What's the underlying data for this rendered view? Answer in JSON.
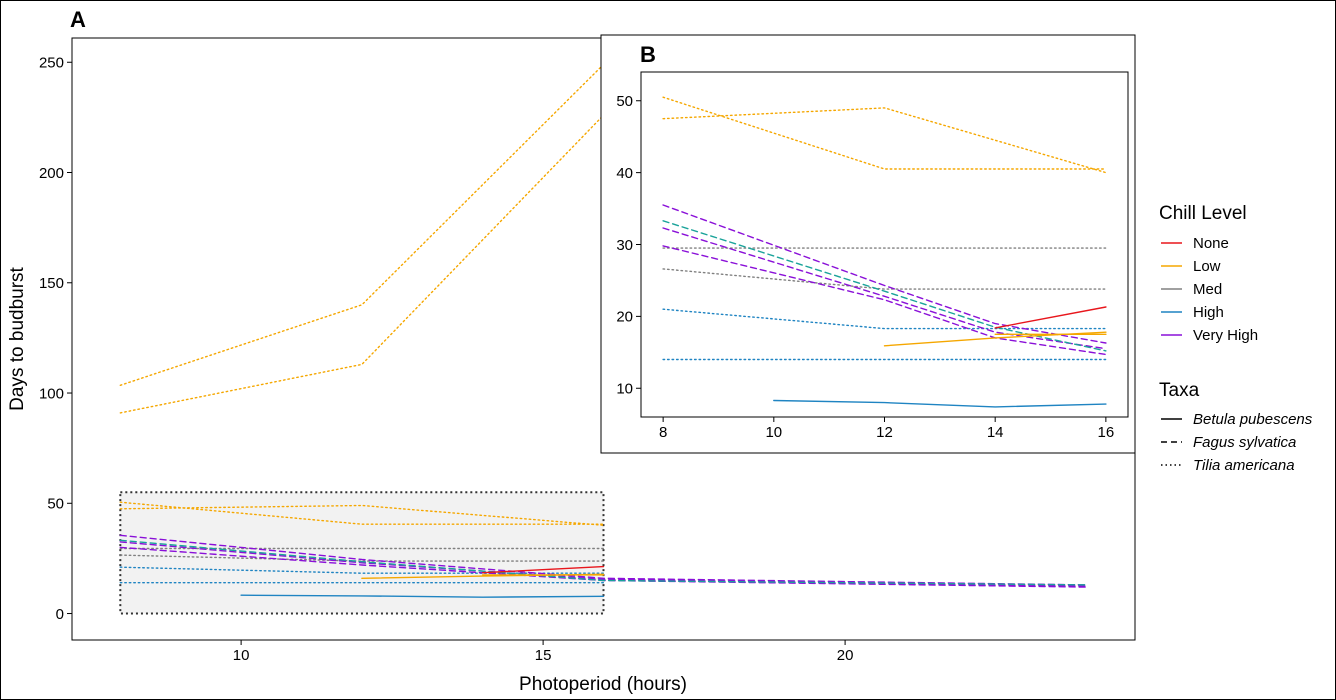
{
  "colors": {
    "None": "#e8161c",
    "Low": "#f5a700",
    "Med": "#808080",
    "High": "#1f84c2",
    "Very High": "#8a10d8",
    "Fagus Med": "#1aa39a",
    "inset_fill": "#f2f2f2",
    "axis": "#000000"
  },
  "chart_data": [
    {
      "id": "A",
      "panel_label": "A",
      "type": "line",
      "xlabel": "Photoperiod (hours)",
      "ylabel": "Days to budburst",
      "xlim": [
        7.2,
        24.8
      ],
      "ylim": [
        -12,
        261
      ],
      "xticks": [
        10,
        15,
        20
      ],
      "yticks": [
        0,
        50,
        100,
        150,
        200,
        250
      ],
      "zoom_region": {
        "x": [
          8,
          16
        ],
        "y": [
          0,
          55
        ]
      },
      "series": [
        {
          "taxa": "Tilia americana",
          "chill": "Low",
          "x": [
            8,
            12,
            16
          ],
          "y": [
            91,
            113,
            226
          ]
        },
        {
          "taxa": "Tilia americana",
          "chill": "Low",
          "x": [
            8,
            12,
            16
          ],
          "y": [
            103.5,
            140,
            249
          ]
        },
        {
          "taxa": "Tilia americana",
          "chill": "Low",
          "x": [
            8,
            12,
            16
          ],
          "y": [
            50.5,
            40.5,
            40.5
          ]
        },
        {
          "taxa": "Tilia americana",
          "chill": "Low",
          "x": [
            8,
            12,
            16
          ],
          "y": [
            47.5,
            49,
            40
          ]
        },
        {
          "taxa": "Tilia americana",
          "chill": "Med",
          "x": [
            8,
            16
          ],
          "y": [
            29.5,
            29.5
          ]
        },
        {
          "taxa": "Tilia americana",
          "chill": "Med",
          "x": [
            8,
            12,
            16
          ],
          "y": [
            26.5,
            23.8,
            23.8
          ]
        },
        {
          "taxa": "Tilia americana",
          "chill": "High",
          "x": [
            8,
            12,
            16
          ],
          "y": [
            21,
            18.3,
            18.3
          ]
        },
        {
          "taxa": "Tilia americana",
          "chill": "High",
          "x": [
            8,
            16
          ],
          "y": [
            14,
            14
          ]
        },
        {
          "taxa": "Fagus sylvatica",
          "chill": "Very High",
          "x": [
            8,
            12,
            16,
            24
          ],
          "y": [
            35.5,
            24.5,
            16,
            13
          ]
        },
        {
          "taxa": "Fagus sylvatica",
          "chill": "Very High",
          "x": [
            8,
            12,
            16,
            24
          ],
          "y": [
            32.5,
            23,
            15.5,
            12.5
          ]
        },
        {
          "taxa": "Fagus sylvatica",
          "chill": "Very High",
          "x": [
            8,
            12,
            16,
            24
          ],
          "y": [
            30,
            22,
            15,
            12
          ]
        },
        {
          "taxa": "Fagus sylvatica",
          "chill": "Med",
          "x": [
            8,
            12,
            16,
            24
          ],
          "y": [
            33.2,
            23.5,
            15,
            13
          ]
        },
        {
          "taxa": "Betula pubescens",
          "chill": "None",
          "x": [
            14,
            16
          ],
          "y": [
            18.5,
            21.3
          ]
        },
        {
          "taxa": "Betula pubescens",
          "chill": "Low",
          "x": [
            12,
            14,
            16
          ],
          "y": [
            16,
            17,
            17.8
          ]
        },
        {
          "taxa": "Betula pubescens",
          "chill": "Low",
          "x": [
            14,
            16
          ],
          "y": [
            17.5,
            17.5
          ]
        },
        {
          "taxa": "Betula pubescens",
          "chill": "High",
          "x": [
            10,
            12,
            14,
            16
          ],
          "y": [
            8.3,
            8,
            7.4,
            7.8
          ]
        }
      ]
    },
    {
      "id": "B",
      "panel_label": "B",
      "type": "line",
      "xlim": [
        7.6,
        16.4
      ],
      "ylim": [
        6,
        54
      ],
      "xticks": [
        8,
        10,
        12,
        14,
        16
      ],
      "yticks": [
        10,
        20,
        30,
        40,
        50
      ],
      "series": [
        {
          "taxa": "Tilia americana",
          "chill": "Low",
          "x": [
            8,
            12,
            16
          ],
          "y": [
            50.5,
            40.5,
            40.5
          ]
        },
        {
          "taxa": "Tilia americana",
          "chill": "Low",
          "x": [
            8,
            12,
            16
          ],
          "y": [
            47.5,
            49,
            40
          ]
        },
        {
          "taxa": "Tilia americana",
          "chill": "Med",
          "x": [
            8,
            16
          ],
          "y": [
            29.5,
            29.5
          ]
        },
        {
          "taxa": "Tilia americana",
          "chill": "Med",
          "x": [
            8,
            12,
            16
          ],
          "y": [
            26.6,
            23.8,
            23.8
          ]
        },
        {
          "taxa": "Tilia americana",
          "chill": "High",
          "x": [
            8,
            12,
            16
          ],
          "y": [
            21,
            18.3,
            18.3
          ]
        },
        {
          "taxa": "Tilia americana",
          "chill": "High",
          "x": [
            8,
            16
          ],
          "y": [
            14,
            14
          ]
        },
        {
          "taxa": "Fagus sylvatica",
          "chill": "Very High",
          "x": [
            8,
            12,
            14,
            16
          ],
          "y": [
            35.5,
            24.3,
            19,
            16.3
          ]
        },
        {
          "taxa": "Fagus sylvatica",
          "chill": "Very High",
          "x": [
            8,
            12,
            14,
            16
          ],
          "y": [
            32.3,
            22.8,
            17.8,
            15.5
          ]
        },
        {
          "taxa": "Fagus sylvatica",
          "chill": "Very High",
          "x": [
            8,
            12,
            14,
            16
          ],
          "y": [
            29.8,
            22.3,
            17,
            14.7
          ]
        },
        {
          "taxa": "Fagus sylvatica",
          "chill": "Med",
          "x": [
            8,
            12,
            14,
            16
          ],
          "y": [
            33.3,
            23.5,
            18.5,
            15.2
          ]
        },
        {
          "taxa": "Betula pubescens",
          "chill": "None",
          "x": [
            14,
            16
          ],
          "y": [
            18.4,
            21.3
          ]
        },
        {
          "taxa": "Betula pubescens",
          "chill": "Low",
          "x": [
            12,
            14,
            16
          ],
          "y": [
            15.9,
            17,
            17.8
          ]
        },
        {
          "taxa": "Betula pubescens",
          "chill": "Low",
          "x": [
            14,
            16
          ],
          "y": [
            17.5,
            17.5
          ]
        },
        {
          "taxa": "Betula pubescens",
          "chill": "High",
          "x": [
            10,
            12,
            14,
            16
          ],
          "y": [
            8.3,
            8,
            7.4,
            7.8
          ]
        }
      ]
    }
  ],
  "legend": {
    "chill_title": "Chill Level",
    "chill": [
      "None",
      "Low",
      "Med",
      "High",
      "Very High"
    ],
    "taxa_title": "Taxa",
    "taxa": [
      {
        "label": "Betula pubescens",
        "dash": "solid"
      },
      {
        "label": "Fagus sylvatica",
        "dash": "dashed"
      },
      {
        "label": "Tilia americana",
        "dash": "dotted"
      }
    ]
  }
}
